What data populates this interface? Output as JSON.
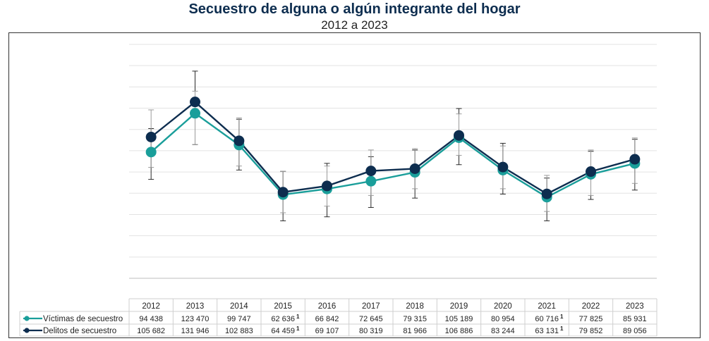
{
  "chart_data": {
    "type": "line",
    "title": "Secuestro de alguna o algún integrante del hogar",
    "subtitle": "2012 a 2023",
    "categories": [
      "2012",
      "2013",
      "2014",
      "2015",
      "2016",
      "2017",
      "2018",
      "2019",
      "2020",
      "2021",
      "2022",
      "2023"
    ],
    "ylim": [
      0,
      175000
    ],
    "grid": true,
    "series": [
      {
        "name": "Víctimas de secuestro",
        "color": "#1a9e9a",
        "values": [
          94438,
          123470,
          99747,
          62636,
          66842,
          72645,
          79315,
          105189,
          80954,
          60716,
          77825,
          85931
        ],
        "labels": [
          "94 438",
          "123 470",
          "99 747",
          "62 636",
          "66 842",
          "72 645",
          "79 315",
          "105 189",
          "80 954",
          "60 716",
          "77 825",
          "85 931"
        ],
        "note": [
          "",
          "",
          "",
          "1",
          "",
          "",
          "",
          "",
          "",
          "1",
          "",
          ""
        ],
        "ci": [
          [
            74000,
            112000
          ],
          [
            100000,
            155000
          ],
          [
            81000,
            119000
          ],
          [
            43000,
            80000
          ],
          [
            46000,
            86000
          ],
          [
            53000,
            91000
          ],
          [
            60000,
            96000
          ],
          [
            85000,
            127000
          ],
          [
            63000,
            101000
          ],
          [
            43000,
            75000
          ],
          [
            59000,
            95000
          ],
          [
            66000,
            104000
          ]
        ]
      },
      {
        "name": "Delitos de secuestro",
        "color": "#0d2d4f",
        "values": [
          105682,
          131946,
          102883,
          64459,
          69107,
          80319,
          81966,
          106886,
          83244,
          63131,
          79852,
          89056
        ],
        "labels": [
          "105 682",
          "131 946",
          "102 883",
          "64 459",
          "69 107",
          "80 319",
          "81 966",
          "106 886",
          "83 244",
          "63 131",
          "79 852",
          "89 056"
        ],
        "note": [
          "",
          "",
          "",
          "1",
          "",
          "",
          "",
          "",
          "",
          "1",
          "",
          ""
        ],
        "ci": [
          [
            83000,
            126000
          ],
          [
            100000,
            140000
          ],
          [
            84000,
            120000
          ],
          [
            49000,
            80000
          ],
          [
            54000,
            84000
          ],
          [
            62000,
            96000
          ],
          [
            67000,
            97000
          ],
          [
            92000,
            123000
          ],
          [
            67000,
            99000
          ],
          [
            50000,
            77000
          ],
          [
            62000,
            96000
          ],
          [
            71000,
            105000
          ]
        ]
      }
    ]
  }
}
